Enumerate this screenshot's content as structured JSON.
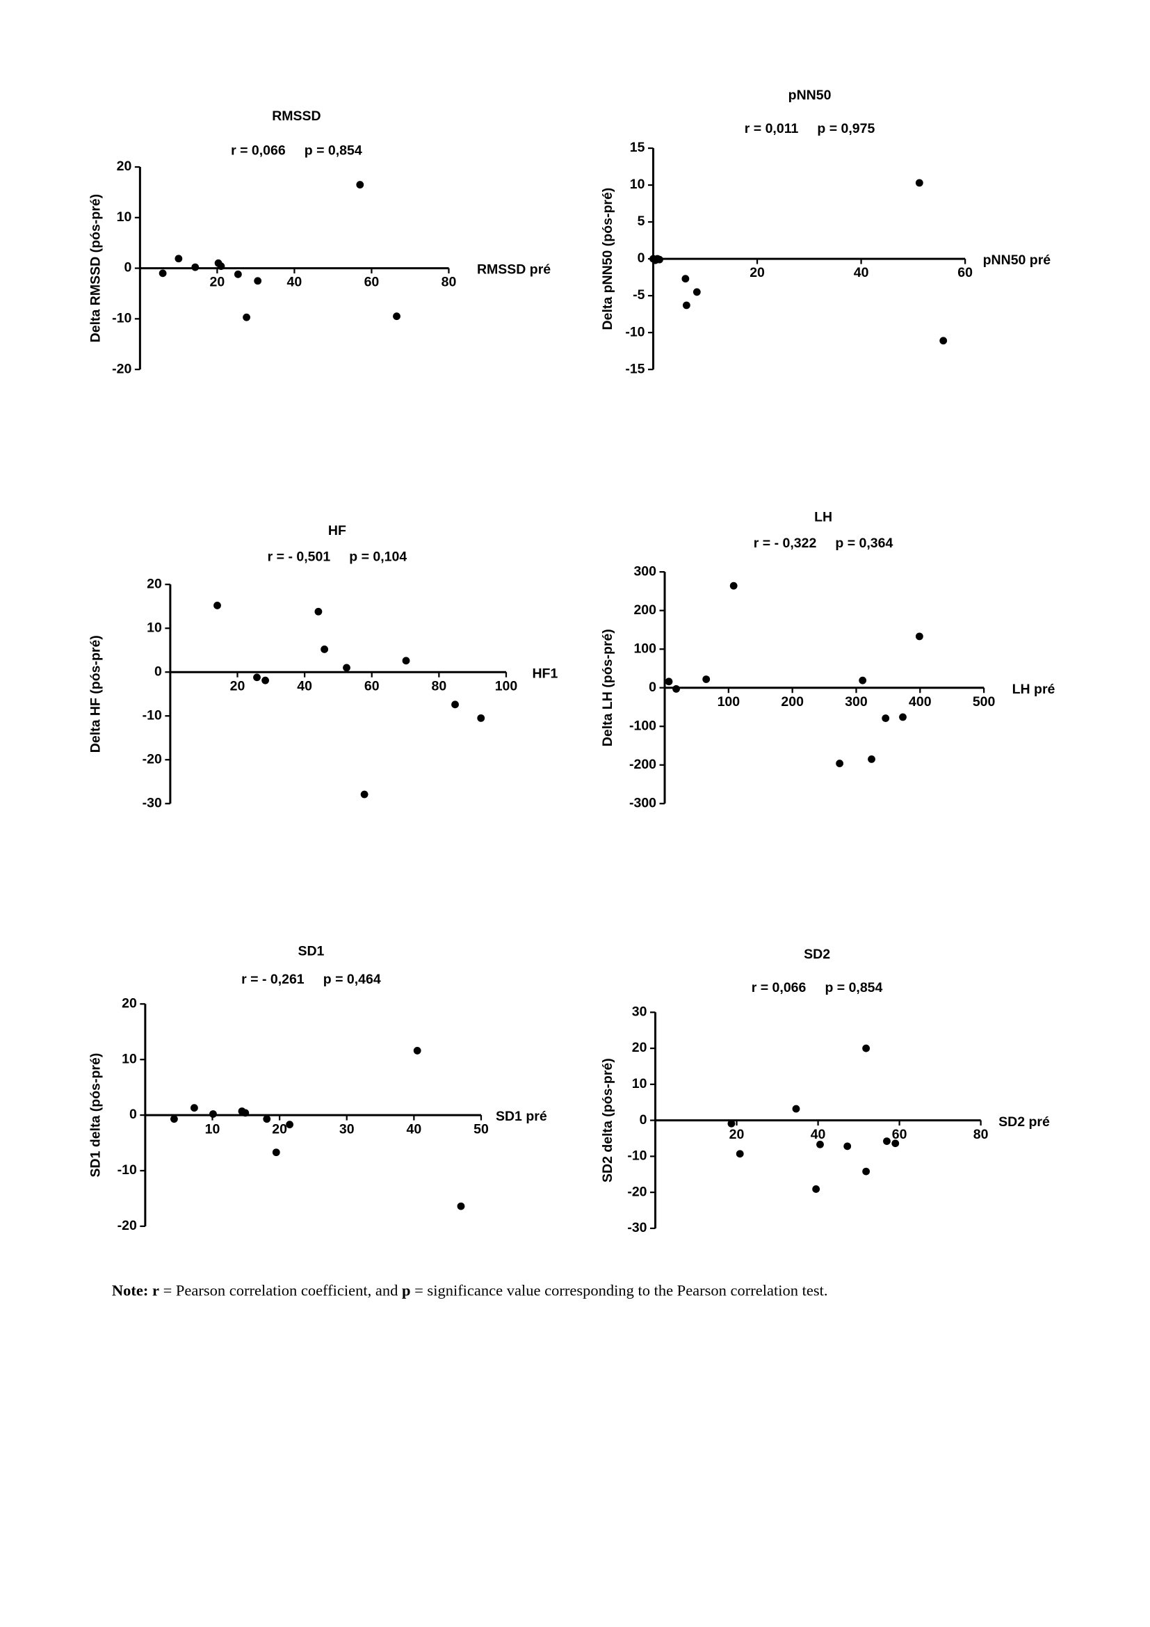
{
  "chart_data": [
    {
      "type": "scatter",
      "title": "RMSSD",
      "subtitle": "r = 0,066     p = 0,854",
      "xlabel": "RMSSD pré",
      "ylabel": "Delta RMSSD (pós-pré)",
      "x": [
        5.9,
        10,
        14.3,
        20.3,
        21,
        25.4,
        30.5,
        27.6,
        57,
        66.5
      ],
      "y": [
        -1.0,
        1.9,
        0.2,
        1.0,
        0.4,
        -1.2,
        -2.5,
        -9.7,
        16.5,
        -9.5
      ],
      "xlim": [
        0,
        80
      ],
      "ylim": [
        -20,
        20
      ],
      "xticks": [
        20,
        40,
        60,
        80
      ],
      "yticks": [
        -20,
        -10,
        0,
        10,
        20
      ],
      "color": "#000000"
    },
    {
      "type": "scatter",
      "title": "pNN50",
      "subtitle": "r = 0,011     p = 0,975",
      "xlabel": "pNN50 pré",
      "ylabel": "Delta pNN50 (pós-pré)",
      "x": [
        0,
        0.4,
        0.8,
        1.2,
        6.2,
        6.4,
        8.4,
        51.2,
        55.8
      ],
      "y": [
        0,
        -0.2,
        0,
        -0.1,
        -2.7,
        -6.3,
        -4.5,
        10.3,
        -11.1
      ],
      "xlim": [
        0,
        60
      ],
      "ylim": [
        -15,
        15
      ],
      "xticks": [
        20,
        40,
        60
      ],
      "yticks": [
        -15,
        -10,
        -5,
        0,
        5,
        10,
        15
      ],
      "color": "#000000"
    },
    {
      "type": "scatter",
      "title": "HF",
      "subtitle": "r = - 0,501     p = 0,104",
      "xlabel": "HF1",
      "ylabel": "Delta HF (pós-pré)",
      "x": [
        14,
        25.8,
        28.3,
        44.1,
        45.9,
        52.5,
        57.8,
        70.2,
        84.8,
        92.5
      ],
      "y": [
        15.2,
        -1.2,
        -1.9,
        13.8,
        5.2,
        1.0,
        -27.9,
        2.6,
        -7.4,
        -10.5
      ],
      "xlim": [
        0,
        100
      ],
      "ylim": [
        -30,
        20
      ],
      "xticks": [
        20,
        40,
        60,
        80,
        100
      ],
      "yticks": [
        -30,
        -20,
        -10,
        0,
        10,
        20
      ],
      "color": "#000000"
    },
    {
      "type": "scatter",
      "title": "LH",
      "subtitle": "r = - 0,322     p = 0,364",
      "xlabel": "LH pré",
      "ylabel": "Delta LH (pós-pré)",
      "x": [
        6.5,
        18,
        65,
        108,
        310,
        274,
        324,
        346,
        373,
        399
      ],
      "y": [
        16,
        -3,
        22,
        264,
        19,
        -196,
        -185,
        -79,
        -76,
        133
      ],
      "xlim": [
        0,
        500
      ],
      "ylim": [
        -300,
        300
      ],
      "xticks": [
        100,
        200,
        300,
        400,
        500
      ],
      "yticks": [
        -300,
        -200,
        -100,
        0,
        100,
        200,
        300
      ],
      "color": "#000000"
    },
    {
      "type": "scatter",
      "title": "SD1",
      "subtitle": "r = - 0,261     p = 0,464",
      "xlabel": "SD1 pré",
      "ylabel": "SD1 delta (pós-pré)",
      "x": [
        4.3,
        7.3,
        10.1,
        14.4,
        14.9,
        18.1,
        19.5,
        21.5,
        40.5,
        47
      ],
      "y": [
        -0.7,
        1.3,
        0.2,
        0.7,
        0.4,
        -0.7,
        -6.7,
        -1.7,
        11.6,
        -16.4
      ],
      "xlim": [
        0,
        50
      ],
      "ylim": [
        -20,
        20
      ],
      "xticks": [
        10,
        20,
        30,
        40,
        50
      ],
      "yticks": [
        -20,
        -10,
        0,
        10,
        20
      ],
      "color": "#000000"
    },
    {
      "type": "scatter",
      "title": "SD2",
      "subtitle": "r = 0,066     p = 0,854",
      "xlabel": "SD2 pré",
      "ylabel": "SD2 delta (pós-pré)",
      "x": [
        18.7,
        20.8,
        34.6,
        40.5,
        39.5,
        47.2,
        51.8,
        51.8,
        56.9,
        59
      ],
      "y": [
        -0.9,
        -9.3,
        3.2,
        -6.7,
        -19.1,
        -7.2,
        20,
        -14.2,
        -5.8,
        -6.4
      ],
      "xlim": [
        0,
        80
      ],
      "ylim": [
        -30,
        30
      ],
      "xticks": [
        20,
        40,
        60,
        80
      ],
      "yticks": [
        -30,
        -20,
        -10,
        0,
        10,
        20,
        30
      ],
      "color": "#000000"
    }
  ],
  "note": [
    "Note:",
    " r",
    " = Pearson correlation coefficient, and ",
    "p",
    " = significance value corresponding to the Pearson correlation test."
  ]
}
